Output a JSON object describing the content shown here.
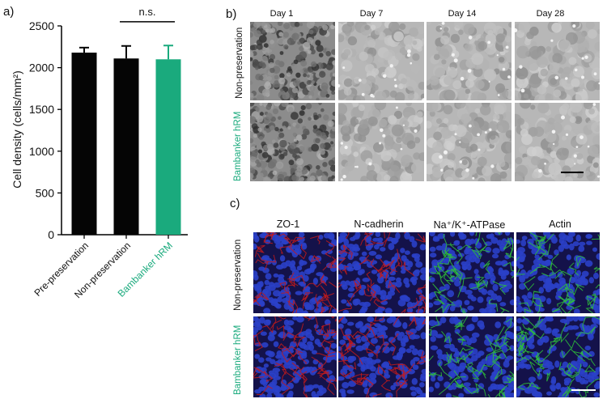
{
  "panels": {
    "a": {
      "letter": "a)"
    },
    "b": {
      "letter": "b)"
    },
    "c": {
      "letter": "c)"
    }
  },
  "chart_data": {
    "type": "bar",
    "categories": [
      "Pre-preservation",
      "Non-preservation",
      "Bambanker hRM"
    ],
    "values": [
      2180,
      2110,
      2100
    ],
    "errors": [
      60,
      150,
      165
    ],
    "bar_colors": [
      "#050505",
      "#050505",
      "#1aaa7d"
    ],
    "ylabel": "Cell density (cells/mm²)",
    "ylim": [
      0,
      2500
    ],
    "yticks": [
      0,
      500,
      1000,
      1500,
      2000,
      2500
    ],
    "annotation": "n.s.",
    "grid": false
  },
  "panel_b": {
    "columns": [
      "Day 1",
      "Day 7",
      "Day 14",
      "Day 28"
    ],
    "rows": [
      "Non-preservation",
      "Bambanker hRM"
    ]
  },
  "panel_c": {
    "columns": [
      "ZO-1",
      "N-cadherin",
      "Na⁺/K⁺-ATPase",
      "Actin"
    ],
    "rows": [
      "Non-preservation",
      "Bambanker hRM"
    ]
  },
  "colors": {
    "accent": "#1aaa7d",
    "bar": "#050505",
    "nuclei": "#2a40c8",
    "red_stain": "#c41a1a",
    "green_stain": "#2ec23a"
  }
}
